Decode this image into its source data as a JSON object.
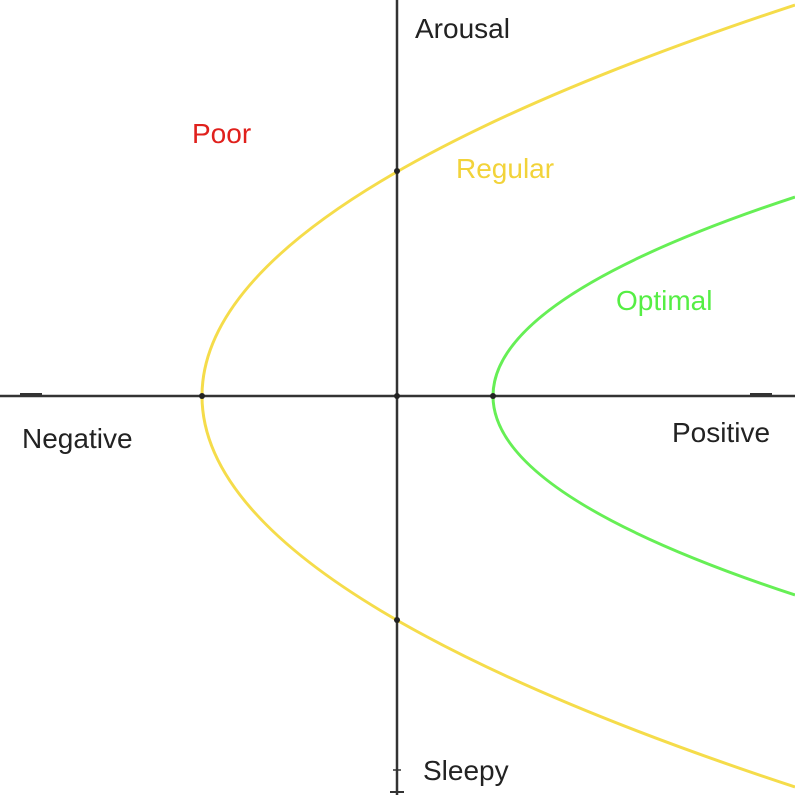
{
  "axes": {
    "top": "Arousal",
    "bottom": "Sleepy",
    "left": "Negative",
    "right": "Positive"
  },
  "regions": [
    {
      "key": "poor",
      "label": "Poor",
      "color": "#e0201c"
    },
    {
      "key": "regular",
      "label": "Regular",
      "color": "#f2d33a"
    },
    {
      "key": "optimal",
      "label": "Optimal",
      "color": "#55ee44"
    }
  ],
  "colors": {
    "axis": "#333333",
    "regular_curve": "#f5dc4a",
    "optimal_curve": "#66ef55",
    "point": "#222222"
  }
}
